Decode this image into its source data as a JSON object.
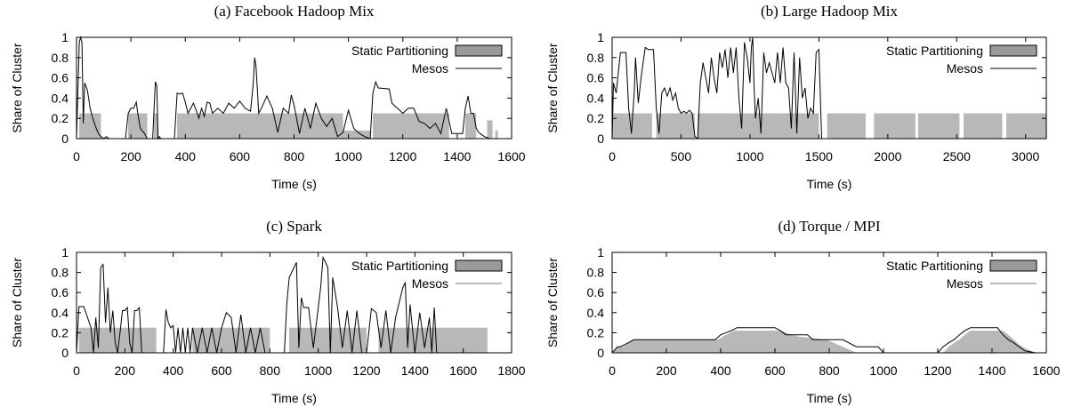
{
  "colors": {
    "static_fill": "#b8b8b8",
    "static_stroke": "#8c8c8c",
    "line": "#000000",
    "line_light": "#4a4a4a"
  },
  "chart_data": [
    {
      "type": "area",
      "panel": "a",
      "title": "(a) Facebook Hadoop Mix",
      "xlabel": "Time (s)",
      "ylabel": "Share of Cluster",
      "xlim": [
        0,
        1600
      ],
      "ylim": [
        0,
        1
      ],
      "xticks": [
        "0",
        "200",
        "400",
        "600",
        "800",
        "1000",
        "1200",
        "1400",
        "1600"
      ],
      "yticks": [
        "0",
        "0.2",
        "0.4",
        "0.6",
        "0.8",
        "1"
      ],
      "legend_position": "top-right",
      "series": [
        {
          "name": "Static Partitioning",
          "style": "area",
          "segments": [
            [
              10,
              90,
              0.25
            ],
            [
              190,
              260,
              0.25
            ],
            [
              285,
              300,
              0.25
            ],
            [
              370,
              980,
              0.25
            ],
            [
              980,
              1080,
              0.08
            ],
            [
              1090,
              1370,
              0.25
            ],
            [
              1430,
              1470,
              0.25
            ],
            [
              1510,
              1530,
              0.18
            ],
            [
              1540,
              1550,
              0.08
            ]
          ]
        },
        {
          "name": "Mesos",
          "style": "line",
          "x": [
            0,
            10,
            15,
            20,
            25,
            30,
            40,
            50,
            60,
            70,
            80,
            90,
            100,
            110,
            120,
            180,
            190,
            200,
            210,
            220,
            225,
            235,
            250,
            260,
            280,
            290,
            295,
            300,
            305,
            310,
            330,
            360,
            370,
            380,
            390,
            400,
            410,
            420,
            430,
            440,
            450,
            460,
            470,
            480,
            490,
            500,
            520,
            540,
            560,
            580,
            600,
            620,
            640,
            650,
            655,
            660,
            670,
            680,
            700,
            720,
            740,
            760,
            780,
            790,
            800,
            820,
            840,
            860,
            880,
            900,
            920,
            940,
            960,
            980,
            1000,
            1020,
            1040,
            1060,
            1080,
            1090,
            1100,
            1110,
            1150,
            1160,
            1180,
            1200,
            1220,
            1240,
            1260,
            1280,
            1300,
            1320,
            1340,
            1360,
            1380,
            1400,
            1420,
            1430,
            1440,
            1450,
            1460,
            1470,
            1480,
            1500,
            1520,
            1530,
            1550
          ],
          "y": [
            0,
            0.95,
            1.0,
            0.95,
            0.15,
            0.55,
            0.48,
            0.3,
            0.2,
            0.12,
            0.05,
            0.02,
            0.0,
            0.02,
            0.0,
            0.0,
            0.25,
            0.3,
            0.3,
            0.36,
            0.25,
            0.1,
            0.05,
            0.0,
            0.0,
            0.56,
            0.52,
            0.0,
            0.02,
            0.0,
            0.0,
            0.0,
            0.45,
            0.44,
            0.45,
            0.36,
            0.25,
            0.3,
            0.35,
            0.28,
            0.2,
            0.3,
            0.22,
            0.36,
            0.35,
            0.25,
            0.3,
            0.25,
            0.35,
            0.3,
            0.37,
            0.3,
            0.27,
            0.55,
            0.8,
            0.72,
            0.25,
            0.3,
            0.42,
            0.3,
            0.06,
            0.3,
            0.25,
            0.43,
            0.33,
            0.05,
            0.3,
            0.1,
            0.35,
            0.2,
            0.12,
            0.2,
            0.02,
            0.06,
            0.28,
            0.1,
            0.05,
            0.02,
            0.0,
            0.45,
            0.56,
            0.5,
            0.49,
            0.35,
            0.3,
            0.25,
            0.3,
            0.3,
            0.17,
            0.15,
            0.1,
            0.15,
            0.05,
            0.3,
            0.05,
            0.05,
            0.05,
            0.3,
            0.42,
            0.25,
            0.25,
            0.1,
            0.06,
            0.02,
            0.0,
            0.0,
            0.0
          ]
        }
      ]
    },
    {
      "type": "area",
      "panel": "b",
      "title": "(b) Large Hadoop Mix",
      "xlabel": "Time (s)",
      "ylabel": "Share of Cluster",
      "xlim": [
        0,
        3150
      ],
      "ylim": [
        0,
        1
      ],
      "xticks": [
        "0",
        "500",
        "1000",
        "1500",
        "2000",
        "2500",
        "3000"
      ],
      "yticks": [
        "0",
        "0.2",
        "0.4",
        "0.6",
        "0.8",
        "1"
      ],
      "legend_position": "top-right",
      "series": [
        {
          "name": "Static Partitioning",
          "style": "area",
          "segments": [
            [
              0,
              290,
              0.25
            ],
            [
              320,
              600,
              0.25
            ],
            [
              620,
              1500,
              0.25
            ],
            [
              1560,
              1840,
              0.25
            ],
            [
              1900,
              2200,
              0.25
            ],
            [
              2220,
              2520,
              0.25
            ],
            [
              2550,
              2830,
              0.25
            ],
            [
              2860,
              3150,
              0.25
            ]
          ]
        },
        {
          "name": "Mesos",
          "style": "line",
          "x": [
            0,
            10,
            30,
            60,
            100,
            120,
            140,
            160,
            170,
            190,
            210,
            240,
            260,
            300,
            320,
            340,
            360,
            380,
            400,
            420,
            440,
            460,
            480,
            500,
            520,
            540,
            560,
            580,
            600,
            620,
            640,
            660,
            680,
            700,
            720,
            740,
            760,
            780,
            800,
            820,
            840,
            860,
            880,
            900,
            920,
            940,
            960,
            980,
            1000,
            1010,
            1020,
            1030,
            1040,
            1060,
            1080,
            1100,
            1120,
            1140,
            1160,
            1180,
            1200,
            1220,
            1240,
            1260,
            1280,
            1300,
            1320,
            1340,
            1360,
            1380,
            1400,
            1420,
            1440,
            1460,
            1480,
            1500,
            1520,
            1540
          ],
          "y": [
            0,
            0.55,
            0.45,
            0.85,
            0.85,
            0.3,
            0.05,
            0.45,
            0.8,
            0.35,
            0.6,
            0.9,
            0.88,
            0.88,
            0.3,
            0.05,
            0.45,
            0.5,
            0.42,
            0.5,
            0.38,
            0.45,
            0.3,
            0.25,
            0.27,
            0.25,
            0.28,
            0.25,
            0.02,
            0.0,
            0.55,
            0.75,
            0.6,
            0.45,
            0.8,
            0.6,
            0.45,
            0.85,
            0.7,
            0.88,
            0.6,
            0.9,
            0.65,
            0.9,
            0.4,
            0.1,
            0.95,
            0.8,
            0.55,
            0.9,
            1.0,
            0.5,
            0.2,
            0.4,
            0.05,
            0.85,
            0.65,
            0.75,
            0.65,
            0.55,
            0.85,
            0.55,
            0.9,
            0.55,
            0.5,
            0.1,
            0.85,
            0.05,
            0.8,
            0.4,
            0.5,
            0.2,
            0.3,
            0.25,
            0.85,
            0.88,
            0.0,
            0.0
          ]
        }
      ]
    },
    {
      "type": "area",
      "panel": "c",
      "title": "(c) Spark",
      "xlabel": "Time (s)",
      "ylabel": "Share of Cluster",
      "xlim": [
        0,
        1800
      ],
      "ylim": [
        0,
        1
      ],
      "xticks": [
        "0",
        "200",
        "400",
        "600",
        "800",
        "1000",
        "1200",
        "1400",
        "1600",
        "1800"
      ],
      "yticks": [
        "0",
        "0.2",
        "0.4",
        "0.6",
        "0.8",
        "1"
      ],
      "legend_position": "top-right",
      "series": [
        {
          "name": "Static Partitioning",
          "style": "area",
          "segments": [
            [
              10,
              330,
              0.25
            ],
            [
              480,
              800,
              0.25
            ],
            [
              880,
              1200,
              0.25
            ],
            [
              1250,
              1700,
              0.25
            ]
          ]
        },
        {
          "name": "Mesos",
          "style": "line",
          "x": [
            0,
            10,
            30,
            60,
            70,
            80,
            90,
            100,
            110,
            120,
            130,
            140,
            150,
            160,
            170,
            180,
            190,
            200,
            210,
            220,
            230,
            240,
            250,
            260,
            270,
            280,
            350,
            360,
            370,
            380,
            390,
            400,
            410,
            420,
            430,
            440,
            450,
            460,
            470,
            480,
            500,
            520,
            540,
            560,
            580,
            600,
            620,
            640,
            660,
            680,
            700,
            720,
            740,
            760,
            780,
            800,
            860,
            870,
            880,
            900,
            910,
            920,
            930,
            940,
            960,
            980,
            1000,
            1010,
            1020,
            1030,
            1040,
            1050,
            1060,
            1080,
            1100,
            1120,
            1140,
            1160,
            1180,
            1200,
            1220,
            1240,
            1260,
            1280,
            1300,
            1320,
            1340,
            1350,
            1360,
            1370,
            1380,
            1400,
            1420,
            1440,
            1460,
            1470,
            1480,
            1490
          ],
          "y": [
            0,
            0.46,
            0.46,
            0.25,
            0.0,
            0.35,
            0.05,
            0.85,
            0.88,
            0.3,
            0.65,
            0.2,
            0.42,
            0.1,
            0.0,
            0.2,
            0.42,
            0.42,
            0.45,
            0.1,
            0.0,
            0.42,
            0.42,
            0.45,
            0.0,
            0.0,
            0.0,
            0.0,
            0.43,
            0.3,
            0.25,
            0.27,
            0.0,
            0.25,
            0.0,
            0.25,
            0.0,
            0.25,
            0.0,
            0.25,
            0.0,
            0.25,
            0.0,
            0.25,
            0.0,
            0.25,
            0.4,
            0.35,
            0.0,
            0.38,
            0.0,
            0.25,
            0.0,
            0.25,
            0.0,
            0.0,
            0.0,
            0.5,
            0.75,
            0.85,
            0.9,
            0.05,
            0.55,
            0.45,
            0.45,
            0.05,
            0.45,
            0.65,
            0.95,
            0.9,
            0.85,
            0.0,
            0.75,
            0.45,
            0.05,
            0.42,
            0.0,
            0.42,
            0.0,
            0.0,
            0.44,
            0.4,
            0.05,
            0.42,
            0.0,
            0.35,
            0.55,
            0.65,
            0.7,
            0.05,
            0.48,
            0.0,
            0.4,
            0.05,
            0.35,
            0.0,
            0.45,
            0.0
          ]
        }
      ]
    },
    {
      "type": "area",
      "panel": "d",
      "title": "(d) Torque / MPI",
      "xlabel": "Time (s)",
      "ylabel": "Share of Cluster",
      "xlim": [
        0,
        1600
      ],
      "ylim": [
        0,
        1
      ],
      "xticks": [
        "0",
        "200",
        "400",
        "600",
        "800",
        "1000",
        "1200",
        "1400",
        "1600"
      ],
      "yticks": [
        "0",
        "0.2",
        "0.4",
        "0.6",
        "0.8",
        "1"
      ],
      "legend_position": "top-right",
      "series": [
        {
          "name": "Static Partitioning",
          "style": "area",
          "x": [
            0,
            20,
            40,
            60,
            80,
            390,
            420,
            450,
            620,
            660,
            690,
            790,
            850,
            900,
            1220,
            1240,
            1260,
            1280,
            1300,
            1320,
            1440,
            1460,
            1480,
            1500,
            1520,
            1560
          ],
          "y": [
            0,
            0.06,
            0.06,
            0.1,
            0.13,
            0.13,
            0.18,
            0.22,
            0.22,
            0.18,
            0.16,
            0.13,
            0.06,
            0.0,
            0.0,
            0.06,
            0.1,
            0.13,
            0.18,
            0.22,
            0.22,
            0.18,
            0.13,
            0.08,
            0.05,
            0.0
          ]
        },
        {
          "name": "Mesos",
          "style": "line",
          "x": [
            0,
            20,
            30,
            60,
            80,
            380,
            400,
            440,
            460,
            600,
            620,
            640,
            720,
            740,
            850,
            900,
            980,
            1000,
            1020,
            1200,
            1220,
            1240,
            1260,
            1280,
            1300,
            1320,
            1420,
            1440,
            1460,
            1480,
            1500,
            1520,
            1560,
            1580
          ],
          "y": [
            0,
            0.06,
            0.06,
            0.1,
            0.13,
            0.13,
            0.18,
            0.22,
            0.25,
            0.25,
            0.22,
            0.18,
            0.18,
            0.13,
            0.13,
            0.06,
            0.06,
            0.0,
            0.0,
            0.0,
            0.06,
            0.1,
            0.13,
            0.18,
            0.22,
            0.25,
            0.25,
            0.18,
            0.13,
            0.1,
            0.06,
            0.02,
            0.0,
            0.0
          ]
        }
      ]
    }
  ]
}
